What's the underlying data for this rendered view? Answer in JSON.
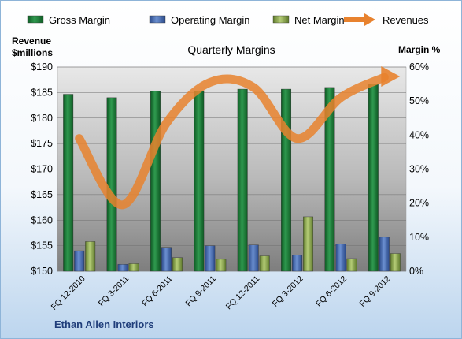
{
  "chart_data": {
    "type": "bar",
    "title": "Quarterly Margins",
    "footer": "Ethan Allen Interiors",
    "categories": [
      "FQ 12-2010",
      "FQ 3-2011",
      "FQ 6-2011",
      "FQ 9-2011",
      "FQ 12-2011",
      "FQ 3-2012",
      "FQ 6-2012",
      "FQ 9-2012"
    ],
    "y_left": {
      "label_line1": "Revenue",
      "label_line2": "$millions",
      "range": [
        150,
        190
      ],
      "step": 5
    },
    "y_right": {
      "label": "Margin %",
      "range": [
        0,
        60
      ],
      "step": 10
    },
    "series": [
      {
        "name": "Gross Margin",
        "type": "bar",
        "axis": "right",
        "color": "#1f7a3a",
        "values": [
          52,
          51,
          53,
          53,
          53.5,
          53.5,
          54,
          55
        ]
      },
      {
        "name": "Operating Margin",
        "type": "bar",
        "axis": "right",
        "color": "#3f62a8",
        "values": [
          6,
          2,
          7,
          7.5,
          7.7,
          4.7,
          8,
          10
        ]
      },
      {
        "name": "Net Margin",
        "type": "bar",
        "axis": "right",
        "color": "#8aa84a",
        "values": [
          8.7,
          2.2,
          4,
          3.5,
          4.5,
          16,
          3.7,
          5.2
        ]
      },
      {
        "name": "Revenues",
        "type": "line",
        "axis": "left",
        "color": "#e8822e",
        "values": [
          176,
          163,
          179,
          187,
          186,
          176,
          184,
          188
        ]
      }
    ],
    "grid": true,
    "legend": "top"
  }
}
